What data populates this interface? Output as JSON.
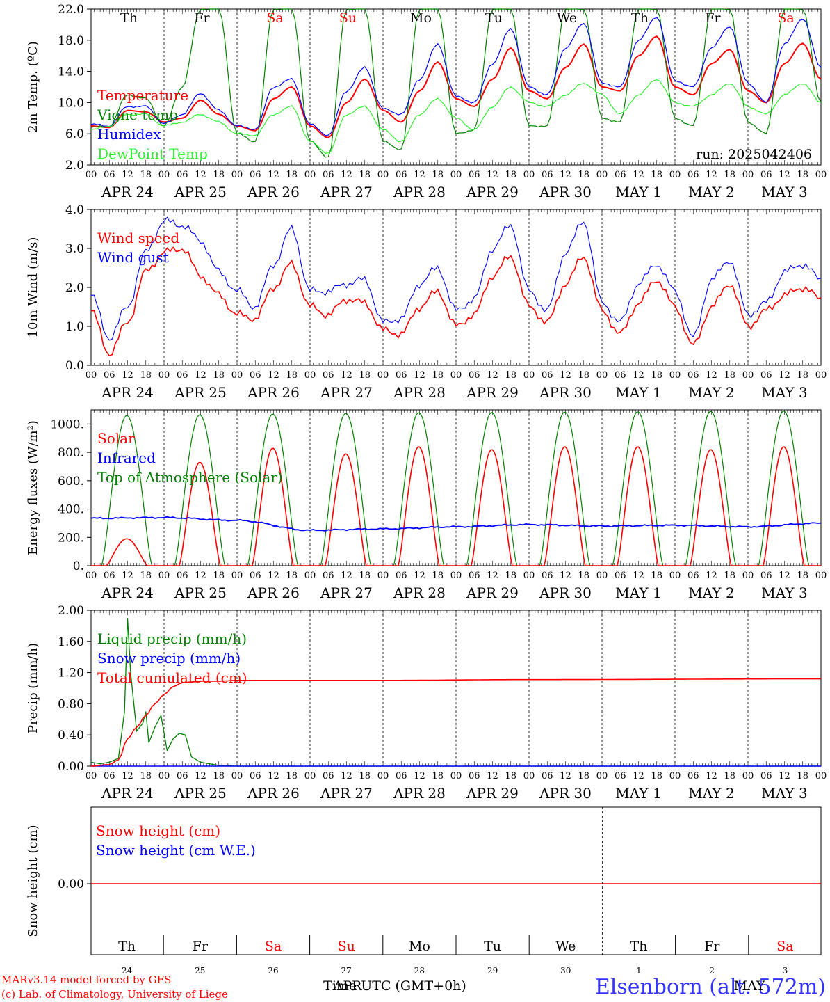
{
  "days": {
    "weekday": [
      "Th",
      "Fr",
      "Sa",
      "Su",
      "Mo",
      "Tu",
      "We",
      "Th",
      "Fr",
      "Sa"
    ],
    "weekend_flags": [
      false,
      false,
      true,
      true,
      false,
      false,
      false,
      false,
      false,
      true
    ],
    "date_labels": [
      "APR 24",
      "APR 25",
      "APR 26",
      "APR 27",
      "APR 28",
      "APR 29",
      "APR 30",
      "MAY  1",
      "MAY  2",
      "MAY  3"
    ],
    "day_numbers": [
      "24",
      "25",
      "26",
      "27",
      "28",
      "29",
      "30",
      "1",
      "2",
      "3"
    ],
    "hour_ticks": [
      "00",
      "06",
      "12",
      "18"
    ],
    "final_hour": "00"
  },
  "footer": {
    "credit_model": "MARv3.14 model forced by GFS",
    "credit_lab": "(c) Lab. of Climatology, University of Liege",
    "xlabel": "Time UTC (GMT+0h)",
    "overlay_month": "APR",
    "overlay_month2": "MAY",
    "station": "Elsenborn (alt. 572m)"
  },
  "colors": {
    "red": "#ff0000",
    "green": "#008000",
    "blue": "#0000ff",
    "light_green": "#33ee33",
    "black": "#000000"
  },
  "chart_data": [
    {
      "type": "line",
      "ylabel": "2m Temp. (ºC)",
      "ylim": [
        2,
        22
      ],
      "ytick_labels": [
        "2.0",
        "6.0",
        "10.0",
        "14.0",
        "18.0",
        "22.0"
      ],
      "annotation": "run: 2025042406",
      "x_hours": [
        0,
        6,
        12,
        18,
        24,
        30,
        36,
        42,
        48,
        54,
        60,
        66,
        72,
        78,
        84,
        90,
        96,
        102,
        108,
        114,
        120,
        126,
        132,
        138,
        144,
        150,
        156,
        162,
        168,
        174,
        180,
        186,
        192,
        198,
        204,
        210,
        216,
        222,
        228,
        234,
        240
      ],
      "series": [
        {
          "name": "Temperature",
          "color": "#ff0000",
          "values": [
            7.0,
            6.8,
            9.0,
            8.8,
            7.5,
            8.0,
            10.3,
            8.5,
            7.0,
            6.4,
            10.5,
            12.0,
            7.0,
            5.5,
            10.0,
            13.0,
            9.0,
            7.5,
            11.5,
            15.2,
            10.5,
            9.5,
            13.0,
            17.0,
            11.5,
            10.5,
            14.5,
            17.5,
            12.0,
            11.5,
            16.0,
            18.5,
            12.0,
            11.0,
            15.0,
            16.8,
            11.5,
            10.0,
            15.0,
            17.6,
            13.0
          ]
        },
        {
          "name": "Vigne temp",
          "color": "#008000",
          "values": [
            6.8,
            7.0,
            11.0,
            10.5,
            7.0,
            12.0,
            22.0,
            22.0,
            6.0,
            5.0,
            22.0,
            22.0,
            5.0,
            3.0,
            22.0,
            22.0,
            5.0,
            4.0,
            22.0,
            22.0,
            6.0,
            6.5,
            22.0,
            22.0,
            7.0,
            7.0,
            22.0,
            22.0,
            8.0,
            7.5,
            22.0,
            22.0,
            8.0,
            7.0,
            22.0,
            22.0,
            7.5,
            6.0,
            22.0,
            22.0,
            10.0
          ]
        },
        {
          "name": "Humidex",
          "color": "#0000ff",
          "values": [
            7.2,
            7.0,
            9.5,
            9.5,
            7.3,
            8.5,
            11.2,
            9.0,
            7.0,
            6.6,
            12.0,
            13.0,
            7.2,
            5.8,
            11.5,
            14.5,
            9.2,
            8.5,
            13.0,
            17.5,
            10.8,
            10.0,
            15.0,
            19.5,
            12.0,
            11.0,
            17.0,
            20.2,
            12.5,
            12.0,
            18.0,
            21.0,
            12.8,
            12.0,
            17.0,
            19.8,
            12.5,
            10.0,
            17.5,
            20.8,
            14.5
          ]
        },
        {
          "name": "DewPoint Temp",
          "color": "#33ee33",
          "values": [
            6.5,
            7.0,
            8.5,
            8.5,
            7.0,
            7.5,
            8.5,
            7.5,
            6.0,
            5.8,
            8.5,
            9.5,
            5.0,
            3.5,
            8.5,
            9.5,
            6.5,
            5.0,
            8.5,
            10.5,
            8.0,
            6.5,
            9.5,
            12.0,
            10.0,
            9.5,
            11.0,
            12.5,
            11.0,
            8.5,
            11.0,
            13.0,
            10.0,
            9.5,
            11.0,
            12.5,
            9.5,
            8.5,
            11.0,
            12.5,
            10.0
          ]
        }
      ]
    },
    {
      "type": "line",
      "ylabel": "10m Wind (m/s)",
      "ylim": [
        0,
        4
      ],
      "ytick_labels": [
        "0.0",
        "1.0",
        "2.0",
        "3.0",
        "4.0"
      ],
      "x_hours": [
        0,
        6,
        12,
        18,
        24,
        30,
        36,
        42,
        48,
        54,
        60,
        66,
        72,
        78,
        84,
        90,
        96,
        102,
        108,
        114,
        120,
        126,
        132,
        138,
        144,
        150,
        156,
        162,
        168,
        174,
        180,
        186,
        192,
        198,
        204,
        210,
        216,
        222,
        228,
        234,
        240
      ],
      "series": [
        {
          "name": "Wind speed",
          "color": "#ff0000",
          "values": [
            1.4,
            0.3,
            1.1,
            2.4,
            2.9,
            3.0,
            2.3,
            1.8,
            1.3,
            1.2,
            2.0,
            2.6,
            1.5,
            1.3,
            1.7,
            1.6,
            0.9,
            0.8,
            1.5,
            1.9,
            1.0,
            1.3,
            2.3,
            2.8,
            1.5,
            1.1,
            2.1,
            2.8,
            1.4,
            0.8,
            1.6,
            2.2,
            1.5,
            0.5,
            1.5,
            2.1,
            1.0,
            1.4,
            1.8,
            2.0,
            1.7
          ]
        },
        {
          "name": "Wind gust",
          "color": "#0000ff",
          "values": [
            1.8,
            0.7,
            1.5,
            2.9,
            3.7,
            3.6,
            3.2,
            2.4,
            1.9,
            1.5,
            2.6,
            3.5,
            1.9,
            1.9,
            2.1,
            2.2,
            1.1,
            1.2,
            2.1,
            2.5,
            1.4,
            1.7,
            3.0,
            3.6,
            1.9,
            1.4,
            2.9,
            3.7,
            1.6,
            1.1,
            2.1,
            2.6,
            1.9,
            0.7,
            2.2,
            2.7,
            1.3,
            1.6,
            2.4,
            2.6,
            2.2
          ]
        }
      ]
    },
    {
      "type": "line",
      "ylabel": "Energy fluxes (W/m²)",
      "ylim": [
        0,
        1100
      ],
      "ytick_labels": [
        "0.",
        "200.",
        "400.",
        "600.",
        "800.",
        "1000."
      ],
      "series": [
        {
          "name": "Solar",
          "color": "#ff0000",
          "daily_peaks": [
            190,
            730,
            830,
            790,
            840,
            820,
            840,
            840,
            820,
            840
          ]
        },
        {
          "name": "Infrared",
          "color": "#0000ff",
          "x_hours": [
            0,
            24,
            48,
            72,
            96,
            120,
            144,
            168,
            192,
            216,
            240
          ],
          "values": [
            335,
            340,
            320,
            250,
            260,
            275,
            290,
            280,
            285,
            275,
            300
          ]
        },
        {
          "name": "Top of Atmosphere (Solar)",
          "color": "#008000",
          "daily_peaks": [
            1060,
            1065,
            1070,
            1075,
            1080,
            1082,
            1085,
            1087,
            1090,
            1092
          ]
        }
      ]
    },
    {
      "type": "line",
      "ylabel": "Precip (mm/h)",
      "ylim": [
        0,
        2
      ],
      "ytick_labels": [
        "0.00",
        "0.40",
        "0.80",
        "1.20",
        "1.60",
        "2.00"
      ],
      "series": [
        {
          "name": "Liquid precip (mm/h)",
          "color": "#008000",
          "x_hours": [
            0,
            3,
            6,
            9,
            11,
            12,
            13,
            15,
            17,
            18,
            19,
            21,
            23,
            25,
            27,
            29,
            31,
            33,
            36,
            39,
            42,
            48,
            240
          ],
          "values": [
            0.05,
            0.03,
            0.05,
            0.1,
            0.7,
            1.9,
            1.2,
            0.45,
            0.55,
            0.7,
            0.3,
            0.5,
            0.65,
            0.2,
            0.35,
            0.42,
            0.4,
            0.12,
            0.05,
            0.03,
            0.01,
            0.0,
            0.0
          ]
        },
        {
          "name": "Snow precip (mm/h)",
          "color": "#0000ff",
          "values": [
            0.0,
            0.0
          ]
        },
        {
          "name": "Total cumulated (cm)",
          "color": "#ff0000",
          "x_hours": [
            0,
            6,
            9,
            12,
            15,
            18,
            21,
            24,
            27,
            30,
            33,
            36,
            42,
            48,
            96,
            144,
            240
          ],
          "values": [
            0.0,
            0.02,
            0.08,
            0.35,
            0.5,
            0.65,
            0.8,
            0.92,
            1.02,
            1.07,
            1.08,
            1.09,
            1.09,
            1.1,
            1.1,
            1.11,
            1.12
          ]
        }
      ]
    },
    {
      "type": "line",
      "ylabel": "Snow height (cm)",
      "ytick_labels": [
        "0.00"
      ],
      "series": [
        {
          "name": "Snow height (cm)",
          "color": "#ff0000",
          "values": [
            0.0,
            0.0
          ]
        },
        {
          "name": "Snow height (cm W.E.)",
          "color": "#0000ff",
          "values": [
            0.0,
            0.0
          ]
        }
      ]
    }
  ]
}
